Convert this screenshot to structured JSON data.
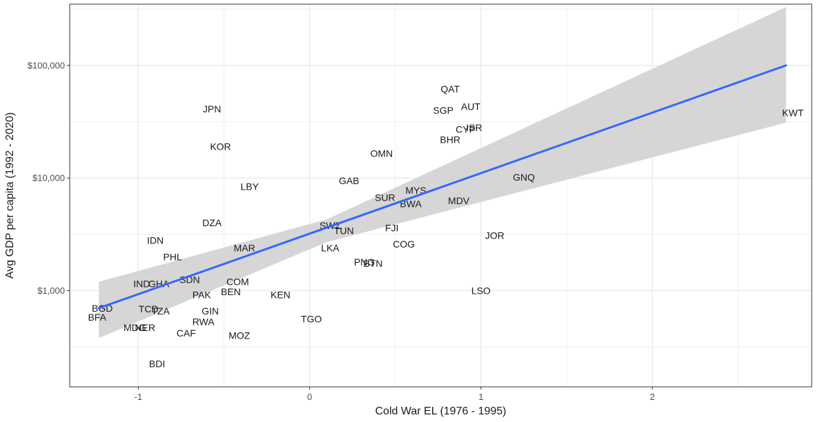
{
  "chart_data": {
    "type": "scatter",
    "title": "",
    "xlabel": "Cold War EL (1976 - 1995)",
    "ylabel": "Avg GDP per capita (1992 - 2020)",
    "xlim": [
      -1.4,
      2.93
    ],
    "ylim": [
      140,
      350000
    ],
    "y_scale": "log",
    "grid": true,
    "x_ticks": [
      -1,
      0,
      1,
      2
    ],
    "x_tick_labels": [
      "-1",
      "0",
      "1",
      "2"
    ],
    "y_ticks": [
      1000,
      10000,
      100000
    ],
    "y_tick_labels": [
      "$1,000",
      "$10,000",
      "$100,000"
    ],
    "colors": {
      "line": "#3366FF",
      "ribbon": "#D4D4D4",
      "grid": "#EBEBEB",
      "panel_border": "#333333"
    },
    "trend": {
      "method": "lm",
      "x": [
        -1.23,
        2.78
      ],
      "y": [
        700,
        100000
      ]
    },
    "ribbon": {
      "x": [
        -1.23,
        0.1,
        2.78
      ],
      "lower": [
        380,
        2700,
        31000
      ],
      "upper": [
        1200,
        4300,
        330000
      ]
    },
    "points": [
      {
        "label": "QAT",
        "x": 0.82,
        "y": 62000
      },
      {
        "label": "AUT",
        "x": 0.94,
        "y": 43000
      },
      {
        "label": "SGP",
        "x": 0.78,
        "y": 40000
      },
      {
        "label": "JPN",
        "x": -0.57,
        "y": 41000
      },
      {
        "label": "KWT",
        "x": 2.82,
        "y": 38000
      },
      {
        "label": "ISR",
        "x": 0.96,
        "y": 28000
      },
      {
        "label": "CYP",
        "x": 0.91,
        "y": 27000
      },
      {
        "label": "BHR",
        "x": 0.82,
        "y": 22000
      },
      {
        "label": "KOR",
        "x": -0.52,
        "y": 19000
      },
      {
        "label": "OMN",
        "x": 0.42,
        "y": 16500
      },
      {
        "label": "GNQ",
        "x": 1.25,
        "y": 10200
      },
      {
        "label": "GAB",
        "x": 0.23,
        "y": 9500
      },
      {
        "label": "LBY",
        "x": -0.35,
        "y": 8400
      },
      {
        "label": "MYS",
        "x": 0.62,
        "y": 7800
      },
      {
        "label": "SUR",
        "x": 0.44,
        "y": 6700
      },
      {
        "label": "MDV",
        "x": 0.87,
        "y": 6300
      },
      {
        "label": "BWA",
        "x": 0.59,
        "y": 5900
      },
      {
        "label": "DZA",
        "x": -0.57,
        "y": 4000
      },
      {
        "label": "SWZ",
        "x": 0.12,
        "y": 3800
      },
      {
        "label": "FJI",
        "x": 0.48,
        "y": 3600
      },
      {
        "label": "TUN",
        "x": 0.2,
        "y": 3400
      },
      {
        "label": "JOR",
        "x": 1.08,
        "y": 3100
      },
      {
        "label": "IDN",
        "x": -0.9,
        "y": 2800
      },
      {
        "label": "COG",
        "x": 0.55,
        "y": 2600
      },
      {
        "label": "MAR",
        "x": -0.38,
        "y": 2400
      },
      {
        "label": "LKA",
        "x": 0.12,
        "y": 2400
      },
      {
        "label": "PHL",
        "x": -0.8,
        "y": 2000
      },
      {
        "label": "PNG",
        "x": 0.32,
        "y": 1800
      },
      {
        "label": "BTN",
        "x": 0.37,
        "y": 1750
      },
      {
        "label": "SDN",
        "x": -0.7,
        "y": 1250
      },
      {
        "label": "COM",
        "x": -0.42,
        "y": 1200
      },
      {
        "label": "IND",
        "x": -0.98,
        "y": 1150
      },
      {
        "label": "GHA",
        "x": -0.88,
        "y": 1150
      },
      {
        "label": "LSO",
        "x": 1.0,
        "y": 1000
      },
      {
        "label": "BEN",
        "x": -0.46,
        "y": 980
      },
      {
        "label": "PAK",
        "x": -0.63,
        "y": 920
      },
      {
        "label": "KEN",
        "x": -0.17,
        "y": 920
      },
      {
        "label": "BGD",
        "x": -1.21,
        "y": 700
      },
      {
        "label": "TCD",
        "x": -0.94,
        "y": 690
      },
      {
        "label": "TZA",
        "x": -0.87,
        "y": 660
      },
      {
        "label": "GIN",
        "x": -0.58,
        "y": 660
      },
      {
        "label": "BFA",
        "x": -1.24,
        "y": 580
      },
      {
        "label": "TGO",
        "x": 0.01,
        "y": 560
      },
      {
        "label": "RWA",
        "x": -0.62,
        "y": 530
      },
      {
        "label": "MDG",
        "x": -1.02,
        "y": 470
      },
      {
        "label": "NER",
        "x": -0.96,
        "y": 470
      },
      {
        "label": "CAF",
        "x": -0.72,
        "y": 420
      },
      {
        "label": "MOZ",
        "x": -0.41,
        "y": 400
      },
      {
        "label": "BDI",
        "x": -0.89,
        "y": 225
      }
    ]
  }
}
